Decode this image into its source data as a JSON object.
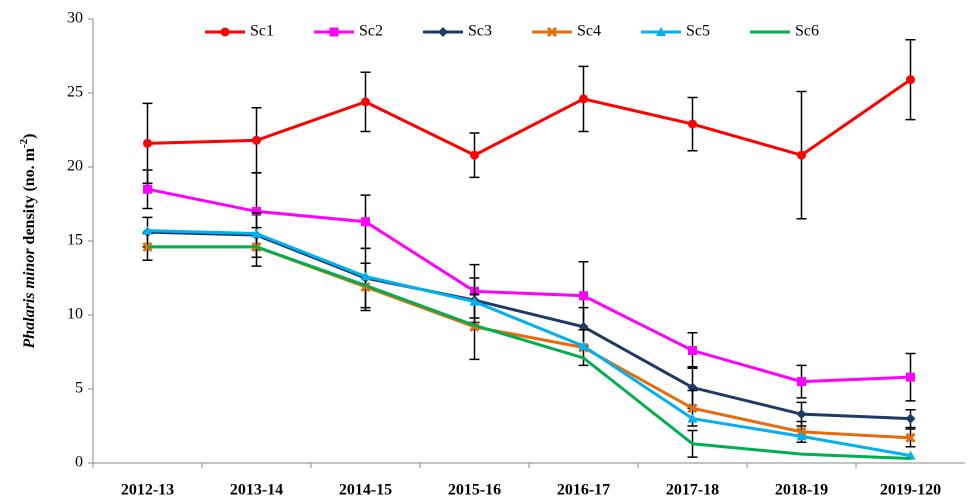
{
  "chart_data": {
    "type": "line",
    "ylabel": {
      "italic": "Phalaris minor",
      "rest": " density (no. m",
      "sup": "-2",
      "end": ")"
    },
    "categories": [
      "2012-13",
      "2013-14",
      "2014-15",
      "2015-16",
      "2016-17",
      "2017-18",
      "2018-19",
      "2019-120"
    ],
    "ylim": [
      0,
      30
    ],
    "yticks": [
      0,
      5,
      10,
      15,
      20,
      25,
      30
    ],
    "legend": "top",
    "series": [
      {
        "name": "Sc1",
        "color": "#ff0000",
        "marker": "circle",
        "values": [
          21.6,
          21.8,
          24.4,
          20.8,
          24.6,
          22.9,
          20.8,
          25.9
        ],
        "errors": [
          2.7,
          2.2,
          2.0,
          1.5,
          2.2,
          1.8,
          4.3,
          2.7
        ]
      },
      {
        "name": "Sc2",
        "color": "#ff00ff",
        "marker": "square",
        "values": [
          18.5,
          17.0,
          16.3,
          11.6,
          11.3,
          7.6,
          5.5,
          5.8
        ],
        "errors": [
          1.3,
          2.6,
          1.8,
          1.8,
          2.3,
          1.2,
          1.1,
          1.6
        ]
      },
      {
        "name": "Sc3",
        "color": "#1f3864",
        "marker": "diamond",
        "values": [
          15.6,
          15.4,
          12.5,
          11.0,
          9.2,
          5.1,
          3.3,
          3.0
        ],
        "errors": [
          1.0,
          1.5,
          2.0,
          1.5,
          1.3,
          1.4,
          0.8,
          0.6
        ]
      },
      {
        "name": "Sc4",
        "color": "#e46c0a",
        "marker": "x",
        "values": [
          14.6,
          14.6,
          11.9,
          9.2,
          7.8,
          3.7,
          2.1,
          1.7
        ],
        "errors": [
          0.9,
          1.3,
          1.6,
          2.2,
          1.2,
          1.2,
          0.7,
          0.6
        ]
      },
      {
        "name": "Sc5",
        "color": "#00b0f0",
        "marker": "triangle",
        "values": [
          15.7,
          15.5,
          12.6,
          10.9,
          7.9,
          3.0,
          1.8,
          0.5
        ]
      },
      {
        "name": "Sc6",
        "color": "#00b050",
        "marker": "none",
        "values": [
          14.6,
          14.6,
          12.0,
          9.3,
          7.1,
          1.3,
          0.6,
          0.3
        ],
        "errors": [
          0,
          0,
          0,
          0,
          0,
          0.9,
          0,
          0
        ]
      }
    ]
  }
}
